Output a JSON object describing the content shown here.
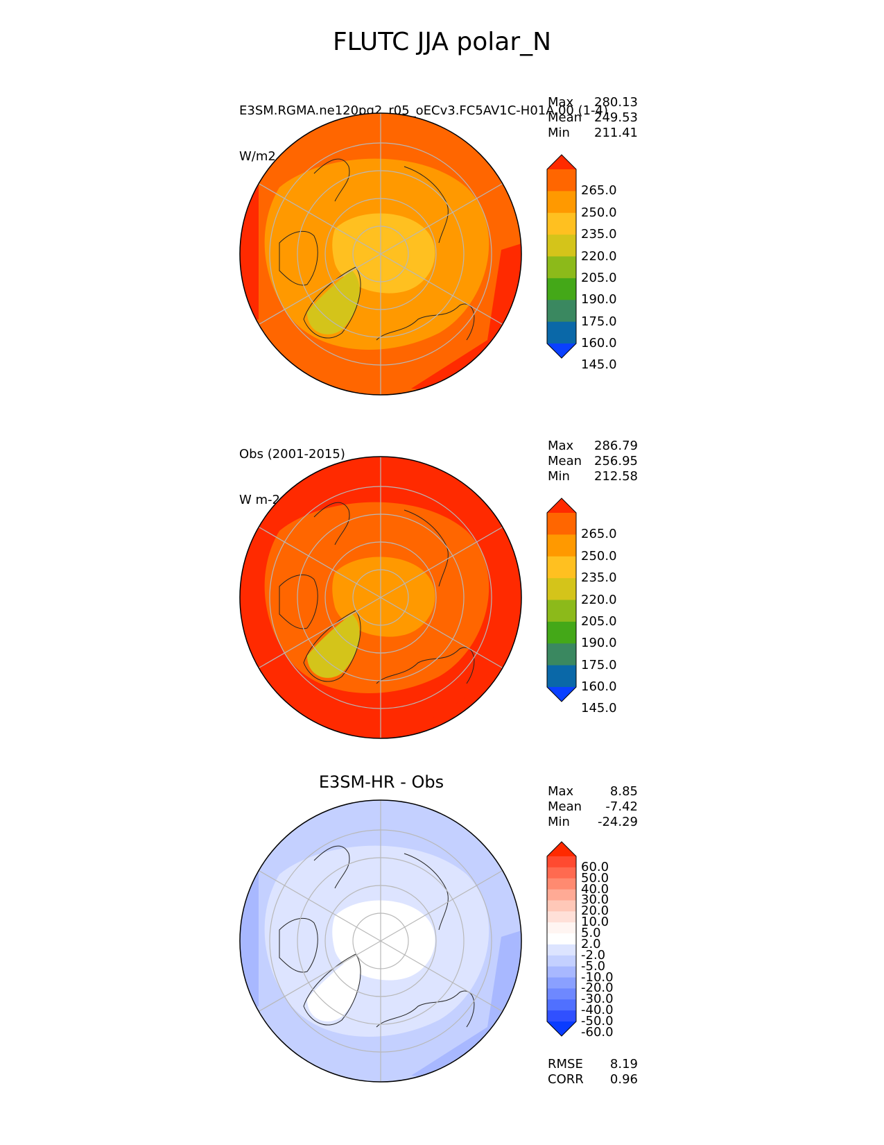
{
  "figure": {
    "title": "FLUTC JJA polar_N",
    "panels": {
      "test": {
        "title": "E3SM.RGMA.ne120pg2_r05_oECv3.FC5AV1C-H01A.00 (1-4)",
        "units": "W/m2",
        "stats": {
          "max_label": "Max",
          "max": "280.13",
          "mean_label": "Mean",
          "mean": "249.53",
          "min_label": "Min",
          "min": "211.41"
        }
      },
      "ref": {
        "title": "Obs (2001-2015)",
        "units": "W m-2",
        "stats": {
          "max_label": "Max",
          "max": "286.79",
          "mean_label": "Mean",
          "mean": "256.95",
          "min_label": "Min",
          "min": "212.58"
        }
      },
      "diff": {
        "title": "E3SM-HR - Obs",
        "stats": {
          "max_label": "Max",
          "max": "8.85",
          "mean_label": "Mean",
          "mean": "-7.42",
          "min_label": "Min",
          "min": "-24.29"
        },
        "metrics": {
          "rmse_label": "RMSE",
          "rmse": "8.19",
          "corr_label": "CORR",
          "corr": "0.96"
        }
      }
    }
  },
  "chart_data": [
    {
      "type": "heatmap",
      "projection": "north-polar-stereographic",
      "colorbar": {
        "ticks": [
          "265.0",
          "250.0",
          "235.0",
          "220.0",
          "205.0",
          "190.0",
          "175.0",
          "160.0",
          "145.0"
        ],
        "colors": [
          "#ff2a00",
          "#ff6600",
          "#ff9900",
          "#ffc020",
          "#d4c41a",
          "#8cba1a",
          "#44a818",
          "#3a8860",
          "#0a68a8",
          "#0a40ff"
        ],
        "extend": "both"
      },
      "field_colors": {
        "arctic": "#ffc020",
        "mid": "#ff9900",
        "outer": "#ff6600",
        "edge": "#ff2a00",
        "greenland": "#d4c41a"
      }
    },
    {
      "type": "heatmap",
      "projection": "north-polar-stereographic",
      "colorbar": {
        "ticks": [
          "265.0",
          "250.0",
          "235.0",
          "220.0",
          "205.0",
          "190.0",
          "175.0",
          "160.0",
          "145.0"
        ],
        "colors": [
          "#ff2a00",
          "#ff6600",
          "#ff9900",
          "#ffc020",
          "#d4c41a",
          "#8cba1a",
          "#44a818",
          "#3a8860",
          "#0a68a8",
          "#0a40ff"
        ],
        "extend": "both"
      },
      "field_colors": {
        "arctic": "#ff9900",
        "mid": "#ff6600",
        "outer": "#ff2a00",
        "edge": "#ff2a00",
        "greenland": "#d4c41a"
      }
    },
    {
      "type": "heatmap",
      "projection": "north-polar-stereographic",
      "colorbar": {
        "ticks": [
          "60.0",
          "50.0",
          "40.0",
          "30.0",
          "20.0",
          "10.0",
          "5.0",
          "2.0",
          "-2.0",
          "-5.0",
          "-10.0",
          "-20.0",
          "-30.0",
          "-40.0",
          "-50.0",
          "-60.0"
        ],
        "colors": [
          "#ff2a00",
          "#ff4a30",
          "#ff6a50",
          "#ff8a70",
          "#ffaa95",
          "#ffc8b8",
          "#ffe0d8",
          "#fff5f2",
          "#ffffff",
          "#dde4ff",
          "#c4d0ff",
          "#a8b8ff",
          "#8aa0ff",
          "#6e88ff",
          "#5070ff",
          "#3050ff",
          "#0a3cff"
        ],
        "extend": "both"
      },
      "field_colors": {
        "arctic": "#ffffff",
        "mid": "#dde4ff",
        "outer": "#c4d0ff",
        "edge": "#a8b8ff",
        "greenland": "#ffffff"
      }
    }
  ]
}
